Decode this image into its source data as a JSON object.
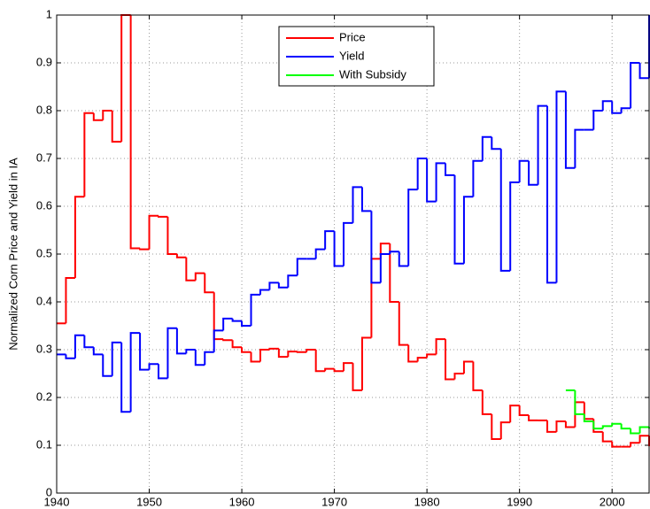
{
  "chart_data": {
    "type": "stairs",
    "ylabel": "Normalized Corn Price and Yield in IA",
    "x": [
      1940,
      1941,
      1942,
      1943,
      1944,
      1945,
      1946,
      1947,
      1948,
      1949,
      1950,
      1951,
      1952,
      1953,
      1954,
      1955,
      1956,
      1957,
      1958,
      1959,
      1960,
      1961,
      1962,
      1963,
      1964,
      1965,
      1966,
      1967,
      1968,
      1969,
      1970,
      1971,
      1972,
      1973,
      1974,
      1975,
      1976,
      1977,
      1978,
      1979,
      1980,
      1981,
      1982,
      1983,
      1984,
      1985,
      1986,
      1987,
      1988,
      1989,
      1990,
      1991,
      1992,
      1993,
      1994,
      1995,
      1996,
      1997,
      1998,
      1999,
      2000,
      2001,
      2002,
      2003,
      2004
    ],
    "series": [
      {
        "name": "Price",
        "color": "#ff0000",
        "values": [
          0.355,
          0.45,
          0.62,
          0.795,
          0.78,
          0.8,
          0.735,
          1.0,
          0.512,
          0.51,
          0.58,
          0.578,
          0.5,
          0.493,
          0.445,
          0.46,
          0.42,
          0.322,
          0.32,
          0.305,
          0.295,
          0.275,
          0.3,
          0.302,
          0.285,
          0.296,
          0.295,
          0.3,
          0.255,
          0.26,
          0.255,
          0.272,
          0.215,
          0.325,
          0.49,
          0.522,
          0.4,
          0.31,
          0.275,
          0.283,
          0.29,
          0.322,
          0.238,
          0.25,
          0.275,
          0.215,
          0.165,
          0.113,
          0.148,
          0.183,
          0.163,
          0.152,
          0.152,
          0.128,
          0.15,
          0.138,
          0.19,
          0.155,
          0.128,
          0.108,
          0.097,
          0.097,
          0.105,
          0.12,
          0.098
        ]
      },
      {
        "name": "Yield",
        "color": "#0000ff",
        "values": [
          0.29,
          0.282,
          0.33,
          0.305,
          0.29,
          0.245,
          0.315,
          0.17,
          0.335,
          0.258,
          0.27,
          0.24,
          0.345,
          0.292,
          0.3,
          0.268,
          0.295,
          0.34,
          0.365,
          0.36,
          0.35,
          0.415,
          0.425,
          0.44,
          0.43,
          0.455,
          0.49,
          0.49,
          0.51,
          0.548,
          0.475,
          0.565,
          0.64,
          0.59,
          0.44,
          0.5,
          0.505,
          0.475,
          0.635,
          0.7,
          0.61,
          0.69,
          0.665,
          0.48,
          0.62,
          0.695,
          0.745,
          0.72,
          0.465,
          0.65,
          0.695,
          0.645,
          0.81,
          0.44,
          0.84,
          0.68,
          0.76,
          0.76,
          0.8,
          0.82,
          0.795,
          0.805,
          0.9,
          0.868,
          1.0
        ]
      },
      {
        "name": "With Subsidy",
        "color": "#00ff00",
        "values": [
          null,
          null,
          null,
          null,
          null,
          null,
          null,
          null,
          null,
          null,
          null,
          null,
          null,
          null,
          null,
          null,
          null,
          null,
          null,
          null,
          null,
          null,
          null,
          null,
          null,
          null,
          null,
          null,
          null,
          null,
          null,
          null,
          null,
          null,
          null,
          null,
          null,
          null,
          null,
          null,
          null,
          null,
          null,
          null,
          null,
          null,
          null,
          null,
          null,
          null,
          null,
          null,
          null,
          null,
          null,
          0.215,
          0.165,
          0.15,
          0.135,
          0.14,
          0.145,
          0.135,
          0.125,
          0.138,
          0.135
        ]
      }
    ],
    "xlim": [
      1940,
      2004
    ],
    "ylim": [
      0,
      1
    ],
    "xticks": [
      1940,
      1950,
      1960,
      1970,
      1980,
      1990,
      2000
    ],
    "yticks": [
      0,
      0.1,
      0.2,
      0.3,
      0.4,
      0.5,
      0.6,
      0.7,
      0.8,
      0.9,
      1
    ],
    "grid": true,
    "legend": "top"
  }
}
